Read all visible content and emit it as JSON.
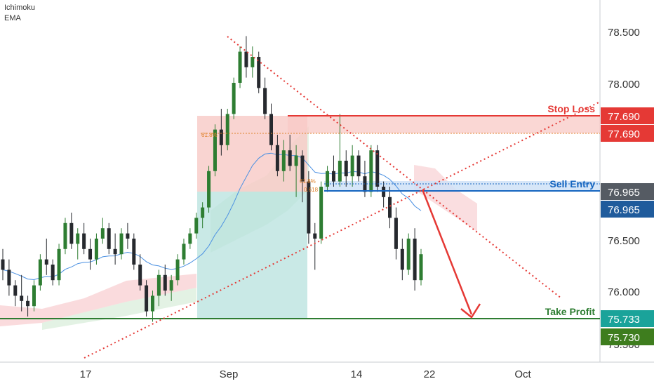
{
  "indicators": [
    "Ichimoku",
    "EMA"
  ],
  "colors": {
    "up": "#26a69a",
    "down": "#26292e",
    "candle_up_body": "#2e7d32",
    "stop_loss": "#e53935",
    "sell_entry": "#1565c0",
    "take_profit": "#2e7d32",
    "arrow": "#e53935",
    "cloud_pink": "#f6c3c6",
    "cloud_green": "#c8e6c9",
    "ema": "#4a90e2",
    "teal_zone": "#b2dfdb",
    "red_zone": "#f8c9c6"
  },
  "annotations": {
    "stop_loss": "Stop Loss",
    "sell_entry": "Sell Entry",
    "take_profit": "Take Profit",
    "fib_upper": "61.8%",
    "fib_upper_2": "61.8%",
    "fib_lower": "0.618"
  },
  "price_badges": [
    {
      "label": "77.690",
      "color": "#e53935"
    },
    {
      "label": "77.690",
      "color": "#e53935"
    },
    {
      "label": "76.965",
      "color": "#555b63"
    },
    {
      "label": "76.965",
      "color": "#1f5b9c"
    },
    {
      "label": "75.733",
      "color": "#1aa39a"
    },
    {
      "label": "75.730",
      "color": "#3e7d1e"
    }
  ],
  "chart_data": {
    "type": "candlestick",
    "instrument_note": "",
    "y_axis": {
      "ticks": [
        "78.500",
        "78.000",
        "76.500",
        "76.000"
      ],
      "partial_tick": "75.500",
      "ylim": [
        75.3,
        78.78
      ]
    },
    "x_axis": {
      "ticks": [
        "17",
        "Sep",
        "14",
        "22",
        "Oct"
      ]
    },
    "levels": {
      "stop_loss": 77.69,
      "fib_618_upper": 77.647,
      "sell_entry": 76.965,
      "sell_entry_zone_top": 77.02,
      "fib_618_lower": 76.975,
      "take_profit": 75.733
    },
    "candles": [
      {
        "o": 76.3,
        "h": 76.4,
        "l": 76.1,
        "c": 76.2
      },
      {
        "o": 76.2,
        "h": 76.3,
        "l": 75.95,
        "c": 76.05
      },
      {
        "o": 76.05,
        "h": 76.1,
        "l": 75.85,
        "c": 75.95
      },
      {
        "o": 75.95,
        "h": 76.15,
        "l": 75.8,
        "c": 75.9
      },
      {
        "o": 75.9,
        "h": 75.95,
        "l": 75.75,
        "c": 75.85
      },
      {
        "o": 75.85,
        "h": 76.1,
        "l": 75.8,
        "c": 76.05
      },
      {
        "o": 76.05,
        "h": 76.35,
        "l": 76.0,
        "c": 76.3
      },
      {
        "o": 76.3,
        "h": 76.5,
        "l": 76.15,
        "c": 76.25
      },
      {
        "o": 76.25,
        "h": 76.3,
        "l": 76.05,
        "c": 76.1
      },
      {
        "o": 76.1,
        "h": 76.45,
        "l": 76.05,
        "c": 76.4
      },
      {
        "o": 76.4,
        "h": 76.7,
        "l": 76.35,
        "c": 76.65
      },
      {
        "o": 76.65,
        "h": 76.75,
        "l": 76.4,
        "c": 76.45
      },
      {
        "o": 76.45,
        "h": 76.6,
        "l": 76.3,
        "c": 76.55
      },
      {
        "o": 76.55,
        "h": 76.65,
        "l": 76.35,
        "c": 76.4
      },
      {
        "o": 76.4,
        "h": 76.5,
        "l": 76.2,
        "c": 76.3
      },
      {
        "o": 76.3,
        "h": 76.55,
        "l": 76.25,
        "c": 76.5
      },
      {
        "o": 76.5,
        "h": 76.7,
        "l": 76.45,
        "c": 76.6
      },
      {
        "o": 76.6,
        "h": 76.65,
        "l": 76.35,
        "c": 76.4
      },
      {
        "o": 76.4,
        "h": 76.55,
        "l": 76.25,
        "c": 76.35
      },
      {
        "o": 76.35,
        "h": 76.6,
        "l": 76.3,
        "c": 76.55
      },
      {
        "o": 76.55,
        "h": 76.65,
        "l": 76.4,
        "c": 76.5
      },
      {
        "o": 76.5,
        "h": 76.55,
        "l": 76.2,
        "c": 76.25
      },
      {
        "o": 76.25,
        "h": 76.35,
        "l": 76.0,
        "c": 76.05
      },
      {
        "o": 76.05,
        "h": 76.1,
        "l": 75.75,
        "c": 75.8
      },
      {
        "o": 75.8,
        "h": 76.0,
        "l": 75.7,
        "c": 75.95
      },
      {
        "o": 75.95,
        "h": 76.2,
        "l": 75.85,
        "c": 76.15
      },
      {
        "o": 76.15,
        "h": 76.25,
        "l": 75.95,
        "c": 76.0
      },
      {
        "o": 76.0,
        "h": 76.15,
        "l": 75.9,
        "c": 76.1
      },
      {
        "o": 76.1,
        "h": 76.35,
        "l": 76.05,
        "c": 76.3
      },
      {
        "o": 76.3,
        "h": 76.5,
        "l": 76.25,
        "c": 76.45
      },
      {
        "o": 76.45,
        "h": 76.6,
        "l": 76.4,
        "c": 76.55
      },
      {
        "o": 76.55,
        "h": 76.75,
        "l": 76.5,
        "c": 76.7
      },
      {
        "o": 76.7,
        "h": 76.85,
        "l": 76.6,
        "c": 76.8
      },
      {
        "o": 76.8,
        "h": 77.2,
        "l": 76.75,
        "c": 77.15
      },
      {
        "o": 77.15,
        "h": 77.6,
        "l": 77.1,
        "c": 77.55
      },
      {
        "o": 77.55,
        "h": 77.75,
        "l": 77.3,
        "c": 77.4
      },
      {
        "o": 77.4,
        "h": 77.75,
        "l": 77.35,
        "c": 77.7
      },
      {
        "o": 77.7,
        "h": 78.05,
        "l": 77.65,
        "c": 78.0
      },
      {
        "o": 78.0,
        "h": 78.35,
        "l": 77.95,
        "c": 78.3
      },
      {
        "o": 78.3,
        "h": 78.45,
        "l": 78.05,
        "c": 78.15
      },
      {
        "o": 78.15,
        "h": 78.35,
        "l": 78.05,
        "c": 78.25
      },
      {
        "o": 78.25,
        "h": 78.3,
        "l": 77.9,
        "c": 77.95
      },
      {
        "o": 77.95,
        "h": 78.05,
        "l": 77.65,
        "c": 77.7
      },
      {
        "o": 77.7,
        "h": 77.8,
        "l": 77.35,
        "c": 77.4
      },
      {
        "o": 77.4,
        "h": 77.5,
        "l": 77.1,
        "c": 77.15
      },
      {
        "o": 77.15,
        "h": 77.45,
        "l": 77.05,
        "c": 77.35
      },
      {
        "o": 77.35,
        "h": 77.5,
        "l": 77.15,
        "c": 77.2
      },
      {
        "o": 77.2,
        "h": 77.4,
        "l": 76.9,
        "c": 77.3
      },
      {
        "o": 77.3,
        "h": 77.35,
        "l": 76.85,
        "c": 77.05
      },
      {
        "o": 77.05,
        "h": 77.15,
        "l": 76.45,
        "c": 76.55
      },
      {
        "o": 76.55,
        "h": 76.65,
        "l": 76.2,
        "c": 76.5
      },
      {
        "o": 76.5,
        "h": 77.05,
        "l": 76.45,
        "c": 77.0
      },
      {
        "o": 77.0,
        "h": 77.2,
        "l": 76.95,
        "c": 77.15
      },
      {
        "o": 77.15,
        "h": 77.3,
        "l": 77.0,
        "c": 77.05
      },
      {
        "o": 77.05,
        "h": 77.7,
        "l": 77.0,
        "c": 77.25
      },
      {
        "o": 77.25,
        "h": 77.35,
        "l": 77.0,
        "c": 77.1
      },
      {
        "o": 77.1,
        "h": 77.4,
        "l": 77.0,
        "c": 77.3
      },
      {
        "o": 77.3,
        "h": 77.35,
        "l": 77.05,
        "c": 77.1
      },
      {
        "o": 77.1,
        "h": 77.25,
        "l": 76.9,
        "c": 76.95
      },
      {
        "o": 76.95,
        "h": 77.4,
        "l": 76.9,
        "c": 77.35
      },
      {
        "o": 77.35,
        "h": 77.4,
        "l": 76.95,
        "c": 77.0
      },
      {
        "o": 77.0,
        "h": 77.05,
        "l": 76.8,
        "c": 76.9
      },
      {
        "o": 76.9,
        "h": 77.0,
        "l": 76.6,
        "c": 76.7
      },
      {
        "o": 76.7,
        "h": 76.8,
        "l": 76.3,
        "c": 76.4
      },
      {
        "o": 76.4,
        "h": 76.5,
        "l": 76.1,
        "c": 76.2
      },
      {
        "o": 76.2,
        "h": 76.55,
        "l": 76.15,
        "c": 76.5
      },
      {
        "o": 76.5,
        "h": 76.6,
        "l": 76.0,
        "c": 76.1
      },
      {
        "o": 76.1,
        "h": 76.4,
        "l": 76.05,
        "c": 76.35
      }
    ],
    "annotations_note": ""
  }
}
